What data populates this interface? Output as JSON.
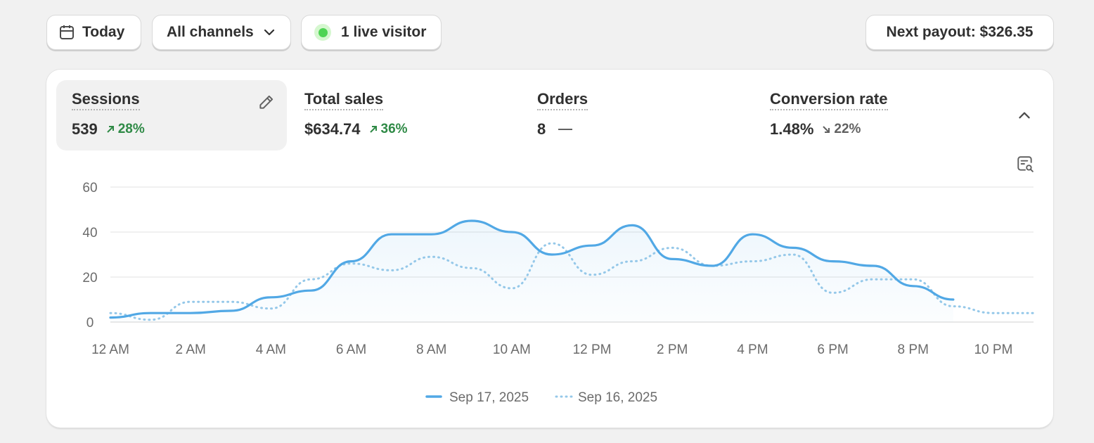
{
  "toolbar": {
    "date_label": "Today",
    "channels_label": "All channels",
    "live_label": "1 live visitor",
    "payout_label": "Next payout: $326.35"
  },
  "metrics": [
    {
      "label": "Sessions",
      "value": "539",
      "change": "28%",
      "trend": "up",
      "active": true
    },
    {
      "label": "Total sales",
      "value": "$634.74",
      "change": "36%",
      "trend": "up",
      "active": false
    },
    {
      "label": "Orders",
      "value": "8",
      "change": "",
      "trend": "flat",
      "active": false
    },
    {
      "label": "Conversion rate",
      "value": "1.48%",
      "change": "22%",
      "trend": "down",
      "active": false
    }
  ],
  "colors": {
    "primary_series": "#51a8e5",
    "comparison_series": "#95c8e9",
    "positive": "#2f8a46",
    "live": "#4fd454"
  },
  "icons": [
    "calendar-icon",
    "chevron-down-icon",
    "live-dot-icon",
    "pencil-icon",
    "chevron-up-icon",
    "chart-zoom-icon"
  ],
  "chart_data": {
    "type": "line",
    "title": "",
    "xlabel": "",
    "ylabel": "",
    "ylim": [
      0,
      60
    ],
    "y_ticks": [
      "0",
      "20",
      "40",
      "60"
    ],
    "x_ticks": [
      {
        "hour": 0,
        "label": "12 AM"
      },
      {
        "hour": 2,
        "label": "2 AM"
      },
      {
        "hour": 4,
        "label": "4 AM"
      },
      {
        "hour": 6,
        "label": "6 AM"
      },
      {
        "hour": 8,
        "label": "8 AM"
      },
      {
        "hour": 10,
        "label": "10 AM"
      },
      {
        "hour": 12,
        "label": "12 PM"
      },
      {
        "hour": 14,
        "label": "2 PM"
      },
      {
        "hour": 16,
        "label": "4 PM"
      },
      {
        "hour": 18,
        "label": "6 PM"
      },
      {
        "hour": 20,
        "label": "8 PM"
      },
      {
        "hour": 22,
        "label": "10 PM"
      }
    ],
    "xlim": [
      0,
      23
    ],
    "grid": true,
    "legend_position": "bottom-center",
    "series": [
      {
        "name": "Sep 17, 2025",
        "style": "solid",
        "hours": [
          0,
          1,
          2,
          3,
          4,
          5,
          6,
          7,
          8,
          9,
          10,
          11,
          12,
          13,
          14,
          15,
          16,
          17,
          18,
          19,
          20,
          21
        ],
        "values": [
          2,
          4,
          4,
          5,
          11,
          14,
          27,
          39,
          39,
          45,
          40,
          30,
          34,
          43,
          28,
          25,
          39,
          33,
          27,
          25,
          16,
          10
        ]
      },
      {
        "name": "Sep 16, 2025",
        "style": "dotted",
        "hours": [
          0,
          1,
          2,
          3,
          4,
          5,
          6,
          7,
          8,
          9,
          10,
          11,
          12,
          13,
          14,
          15,
          16,
          17,
          18,
          19,
          20,
          21,
          22,
          23
        ],
        "values": [
          4,
          1,
          9,
          9,
          6,
          19,
          26,
          23,
          29,
          24,
          15,
          35,
          21,
          27,
          33,
          25,
          27,
          30,
          13,
          19,
          19,
          7,
          4,
          4
        ]
      }
    ]
  }
}
